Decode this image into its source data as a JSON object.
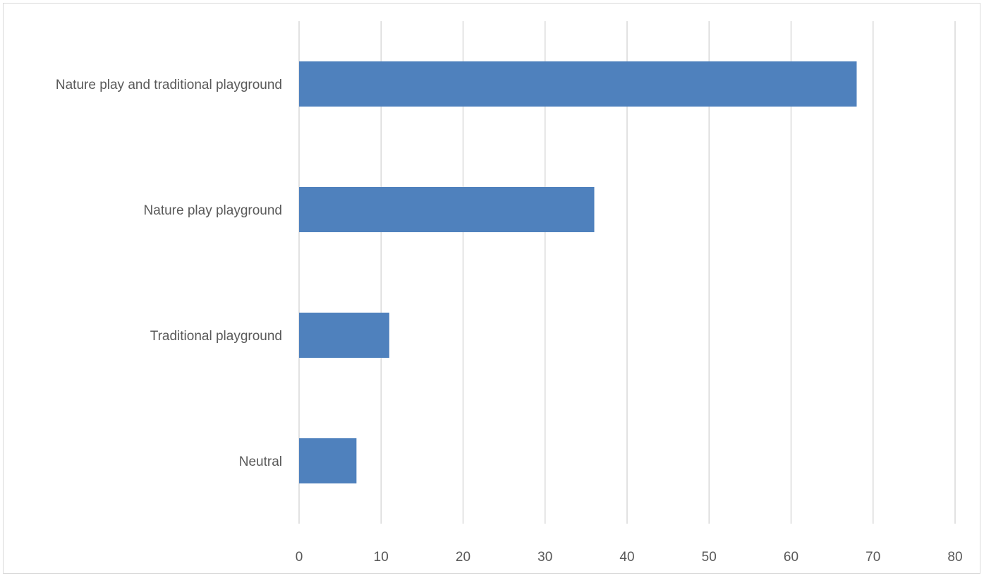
{
  "chart_data": {
    "type": "bar",
    "orientation": "horizontal",
    "title": "",
    "xlabel": "",
    "ylabel": "",
    "categories": [
      "Nature play and traditional playground",
      "Nature play playground",
      "Traditional playground",
      "Neutral"
    ],
    "values": [
      68,
      36,
      11,
      7
    ],
    "xlim": [
      0,
      80
    ],
    "xticks": [
      0,
      10,
      20,
      30,
      40,
      50,
      60,
      70,
      80
    ],
    "grid": "vertical",
    "legend": "none",
    "bar_color": "#4f81bd",
    "gridline_color": "#d9d9d9",
    "text_color": "#595959"
  }
}
